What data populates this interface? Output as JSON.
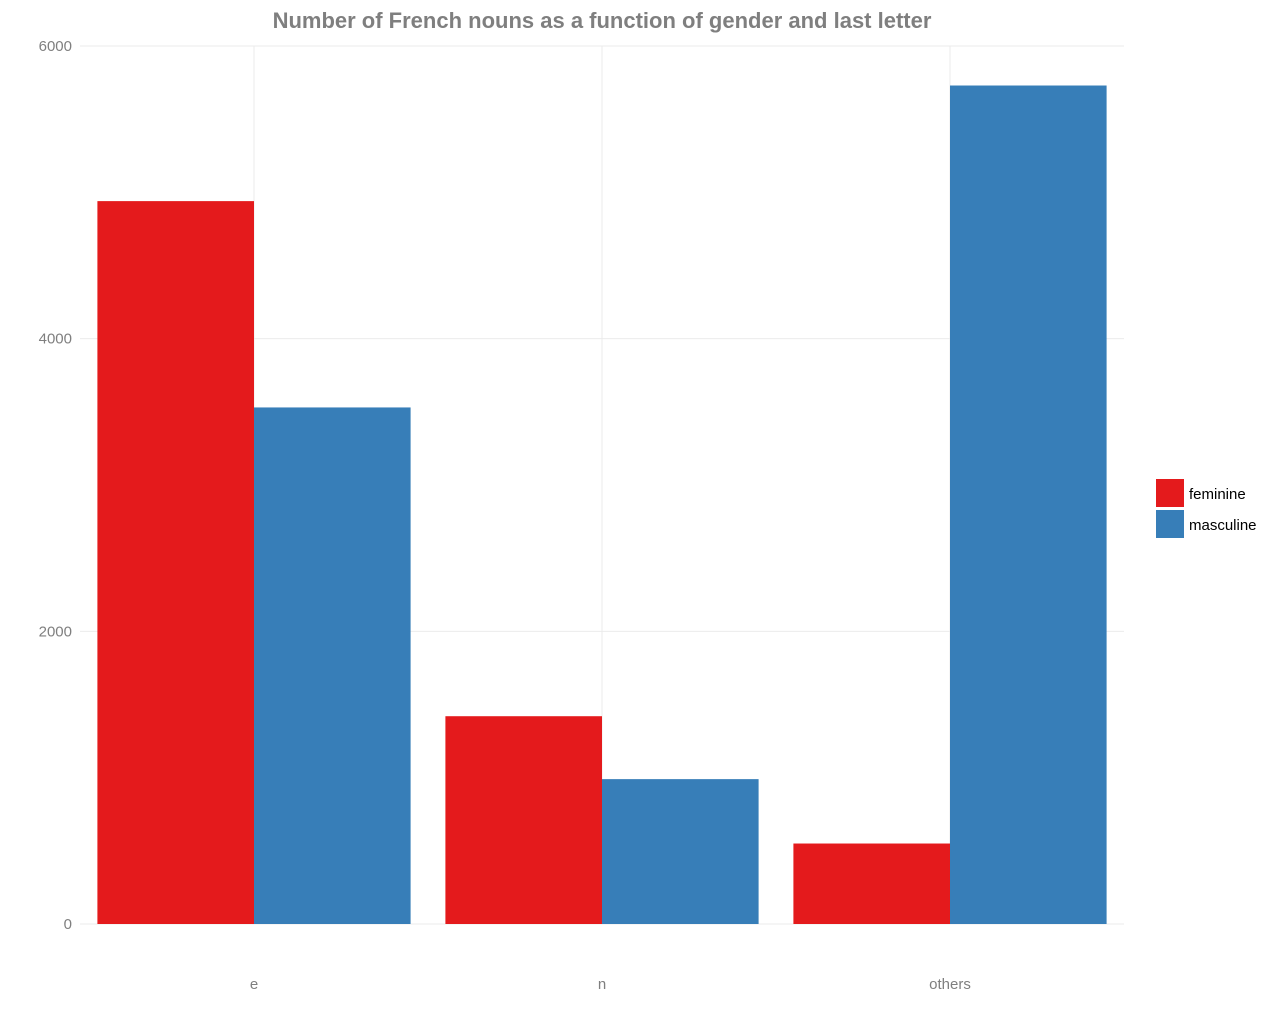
{
  "chart_data": {
    "type": "bar",
    "title": "Number of French nouns as a function of gender and last letter",
    "xlabel": "",
    "ylabel": "",
    "categories": [
      "e",
      "n",
      "others"
    ],
    "series": [
      {
        "name": "feminine",
        "color": "#e41a1c",
        "values": [
          4940,
          1420,
          550
        ]
      },
      {
        "name": "masculine",
        "color": "#377eb8",
        "values": [
          3530,
          990,
          5730
        ]
      }
    ],
    "ylim": [
      0,
      6000
    ],
    "yticks": [
      0,
      2000,
      4000,
      6000
    ],
    "grid": true,
    "legend_position": "right"
  }
}
